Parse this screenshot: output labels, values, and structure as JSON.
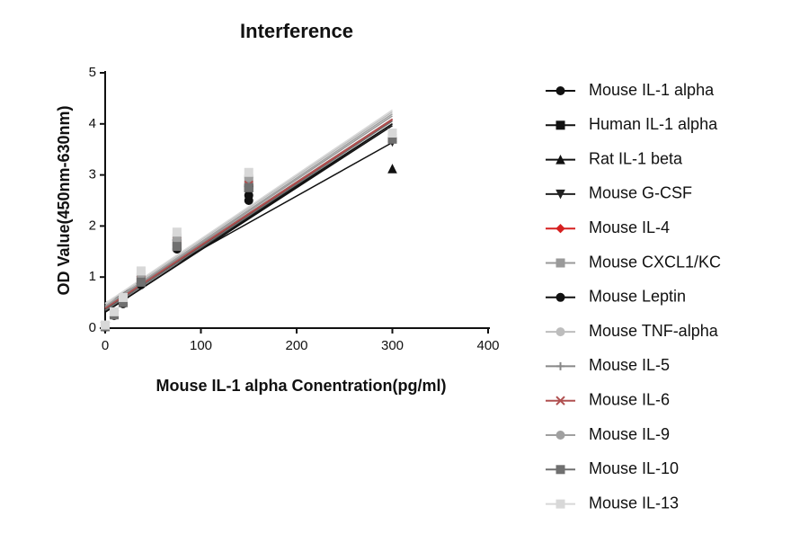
{
  "chart_data": {
    "type": "scatter",
    "title": "Interference",
    "x_label": "Mouse IL-1 alpha Conentration(pg/ml)",
    "y_label": "OD Value(450nm-630nm)",
    "x": [
      0,
      9.38,
      18.75,
      37.5,
      75,
      150,
      300
    ],
    "xlim": [
      0,
      400
    ],
    "xticks": [
      0,
      100,
      200,
      300,
      400
    ],
    "ylim": [
      0,
      5
    ],
    "yticks": [
      0,
      1,
      2,
      3,
      4,
      5
    ],
    "fit_lines": true,
    "legend": "right",
    "series": [
      {
        "name": " Mouse IL-1 alpha",
        "color": "#111111",
        "marker": "circle",
        "values": [
          0.02,
          0.25,
          0.48,
          0.88,
          1.55,
          2.5,
          3.7
        ]
      },
      {
        "name": "Human IL-1 alpha",
        "color": "#111111",
        "marker": "square",
        "values": [
          0.03,
          0.27,
          0.5,
          0.9,
          1.6,
          2.75,
          3.75
        ]
      },
      {
        "name": "Rat IL-1 beta",
        "color": "#111111",
        "marker": "triangle",
        "values": [
          0.05,
          0.3,
          0.55,
          0.95,
          1.8,
          2.85,
          3.12
        ]
      },
      {
        "name": "Mouse G-CSF",
        "color": "#222222",
        "marker": "triangle-down",
        "values": [
          0.03,
          0.25,
          0.5,
          0.92,
          1.65,
          2.7,
          3.65
        ]
      },
      {
        "name": "Mouse IL-4",
        "color": "#d62020",
        "marker": "diamond",
        "values": [
          0.04,
          0.28,
          0.52,
          0.95,
          1.7,
          2.8,
          3.7
        ]
      },
      {
        "name": "Mouse CXCL1/KC",
        "color": "#9a9a9a",
        "marker": "square",
        "values": [
          0.05,
          0.3,
          0.55,
          1.0,
          1.75,
          2.9,
          3.75
        ]
      },
      {
        "name": "Mouse Leptin",
        "color": "#111111",
        "marker": "circle",
        "values": [
          0.02,
          0.25,
          0.48,
          0.85,
          1.55,
          2.6,
          3.7
        ]
      },
      {
        "name": "Mouse TNF-alpha",
        "color": "#bdbdbd",
        "marker": "circle",
        "values": [
          0.06,
          0.32,
          0.58,
          1.1,
          1.85,
          3.0,
          3.8
        ]
      },
      {
        "name": "Mouse IL-5",
        "color": "#888888",
        "marker": "plus",
        "values": [
          0.04,
          0.28,
          0.55,
          1.0,
          1.7,
          2.85,
          3.7
        ]
      },
      {
        "name": "Mouse IL-6",
        "color": "#b05050",
        "marker": "cross",
        "values": [
          0.04,
          0.28,
          0.52,
          0.95,
          1.7,
          2.8,
          3.72
        ]
      },
      {
        "name": "Mouse IL-9",
        "color": "#a0a0a0",
        "marker": "circle",
        "values": [
          0.05,
          0.3,
          0.56,
          1.05,
          1.75,
          2.95,
          3.78
        ]
      },
      {
        "name": "Mouse IL-10",
        "color": "#707070",
        "marker": "square",
        "values": [
          0.03,
          0.26,
          0.5,
          0.9,
          1.6,
          2.75,
          3.7
        ]
      },
      {
        "name": "Mouse IL-13",
        "color": "#d8d8d8",
        "marker": "square",
        "values": [
          0.06,
          0.32,
          0.6,
          1.12,
          1.88,
          3.05,
          3.82
        ]
      }
    ]
  }
}
